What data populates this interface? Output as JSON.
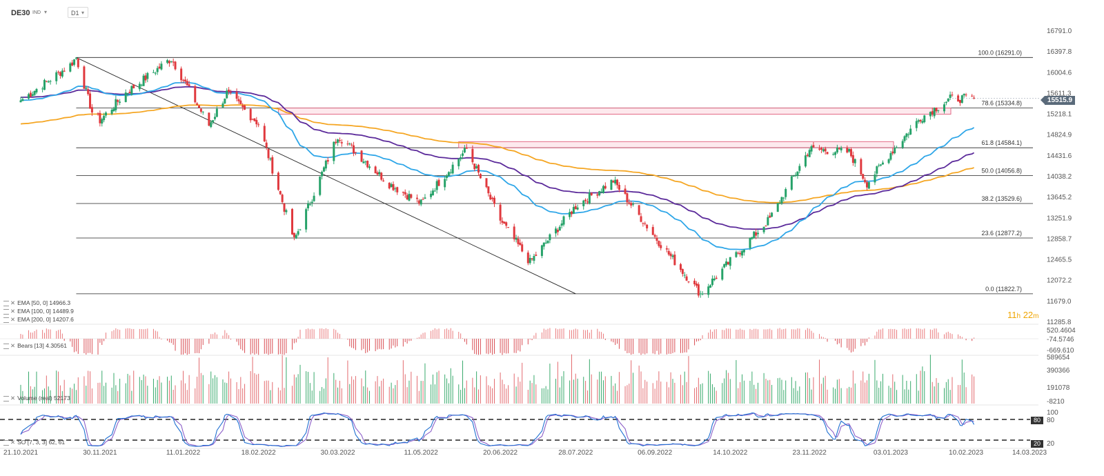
{
  "toolbar": {
    "symbol": "DE30",
    "symbol_type": "IND",
    "timeframe": "D1"
  },
  "price_axis": {
    "labels": [
      "16791.0",
      "16397.8",
      "16004.6",
      "15611.3",
      "15218.1",
      "14824.9",
      "14431.6",
      "14038.2",
      "13645.2",
      "13251.9",
      "12858.7",
      "12465.5",
      "12072.2",
      "11679.0",
      "11285.8"
    ],
    "current_price": "15515.9"
  },
  "date_axis": {
    "labels": [
      "21.10.2021",
      "30.11.2021",
      "11.01.2022",
      "18.02.2022",
      "30.03.2022",
      "11.05.2022",
      "20.06.2022",
      "28.07.2022",
      "06.09.2022",
      "14.10.2022",
      "23.11.2022",
      "03.01.2023",
      "10.02.2023",
      "14.03.2023"
    ]
  },
  "fib_levels": [
    {
      "label": "100.0 (16291.0)",
      "value": 16291.0
    },
    {
      "label": "78.6 (15334.8)",
      "value": 15334.8
    },
    {
      "label": "61.8 (14584.1)",
      "value": 14584.1
    },
    {
      "label": "50.0 (14056.8)",
      "value": 14056.8
    },
    {
      "label": "38.2 (13529.6)",
      "value": 13529.6
    },
    {
      "label": "23.6 (12877.2)",
      "value": 12877.2
    },
    {
      "label": "0.0 (11822.7)",
      "value": 11822.7
    }
  ],
  "indicators": {
    "ema50": "EMA [50, 0] 14966.3",
    "ema100": "EMA [100, 0] 14489.9",
    "ema200": "EMA [200, 0] 14207.6",
    "bears": "Bears [13] 4.30561",
    "volume": "Volume (real) 52173",
    "stochastic": "SO [7, 3, 3] 62, 61"
  },
  "bears_axis": [
    "520.4604",
    "-74.5746",
    "-669.610"
  ],
  "volume_axis": [
    "589654",
    "390366",
    "191078",
    "-8210"
  ],
  "stoch_axis": [
    "100",
    "80",
    "20"
  ],
  "stoch_tags": [
    "80",
    "20"
  ],
  "timer": {
    "hours": "11",
    "h_unit": "h",
    "minutes": "22",
    "m_unit": "m"
  },
  "colors": {
    "up": "#26a269",
    "down": "#e0393e",
    "ema50": "#2ea6e8",
    "ema100": "#5b2a9a",
    "ema200": "#f5a623",
    "stoch_k": "#1f6fd1",
    "stoch_d": "#8c5fc8"
  },
  "chart_data": {
    "type": "candlestick",
    "symbol": "DE30",
    "timeframe": "D1",
    "ylim": [
      11285.8,
      16791.0
    ],
    "x_range": [
      "21.10.2021",
      "14.03.2023"
    ],
    "close_path": [
      {
        "date": "21.10.2021",
        "close": 15480
      },
      {
        "date": "15.11.2021",
        "close": 16150
      },
      {
        "date": "18.11.2021",
        "close": 16291
      },
      {
        "date": "26.11.2021",
        "close": 15260
      },
      {
        "date": "30.11.2021",
        "close": 15100
      },
      {
        "date": "13.12.2021",
        "close": 15620
      },
      {
        "date": "05.01.2022",
        "close": 16271
      },
      {
        "date": "24.01.2022",
        "close": 15010
      },
      {
        "date": "02.02.2022",
        "close": 15620
      },
      {
        "date": "18.02.2022",
        "close": 15040
      },
      {
        "date": "08.03.2022",
        "close": 12830
      },
      {
        "date": "30.03.2022",
        "close": 14820
      },
      {
        "date": "25.04.2022",
        "close": 13900
      },
      {
        "date": "11.05.2022",
        "close": 13530
      },
      {
        "date": "03.06.2022",
        "close": 14560
      },
      {
        "date": "20.06.2022",
        "close": 13220
      },
      {
        "date": "05.07.2022",
        "close": 12420
      },
      {
        "date": "28.07.2022",
        "close": 13480
      },
      {
        "date": "16.08.2022",
        "close": 13960
      },
      {
        "date": "06.09.2022",
        "close": 12900
      },
      {
        "date": "29.09.2022",
        "close": 11822.7
      },
      {
        "date": "14.10.2022",
        "close": 12440
      },
      {
        "date": "03.11.2022",
        "close": 13240
      },
      {
        "date": "23.11.2022",
        "close": 14560
      },
      {
        "date": "13.12.2022",
        "close": 14500
      },
      {
        "date": "22.12.2022",
        "close": 13910
      },
      {
        "date": "03.01.2023",
        "close": 14490
      },
      {
        "date": "18.01.2023",
        "close": 15150
      },
      {
        "date": "02.02.2023",
        "close": 15510
      },
      {
        "date": "10.02.2023",
        "close": 15520
      },
      {
        "date": "14.02.2023",
        "close": 15515.9
      }
    ],
    "ema_end_values": {
      "ema50": 14966.3,
      "ema100": 14489.9,
      "ema200": 14207.6
    },
    "fib_retracement": {
      "high": 16291.0,
      "low": 11822.7
    },
    "resistance_zones": [
      {
        "from": 15218.1,
        "to": 15334.8
      },
      {
        "from": 14584.1,
        "to": 14700.0
      }
    ],
    "trendline": {
      "from": {
        "date": "18.11.2021",
        "value": 16291.0
      },
      "to": {
        "date": "28.07.2022",
        "value": 11822.7
      }
    },
    "stochastic_levels": [
      80,
      20
    ]
  }
}
